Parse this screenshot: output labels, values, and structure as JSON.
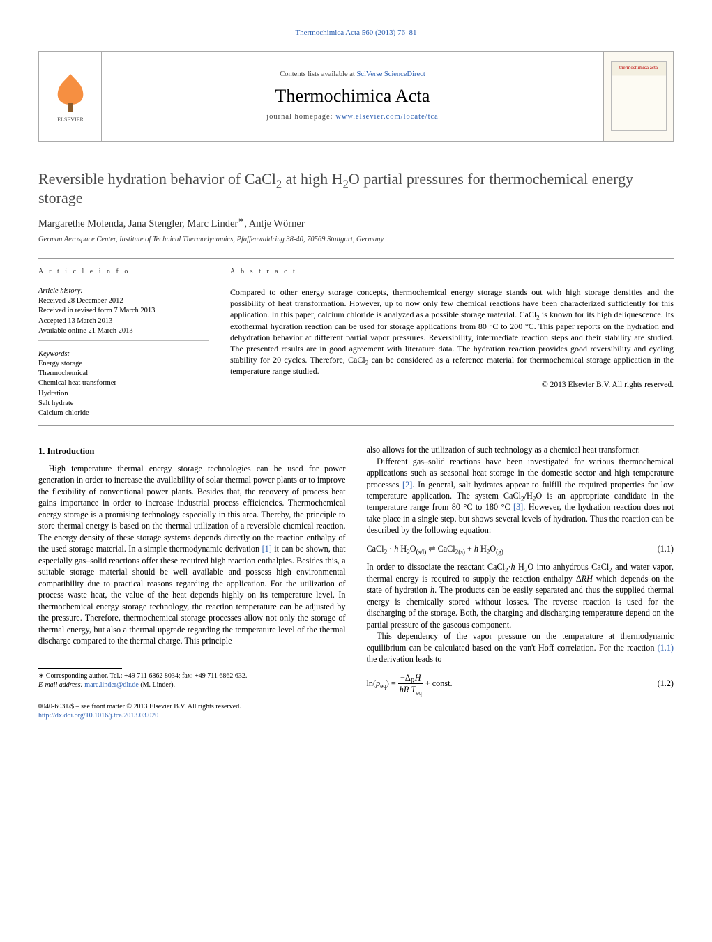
{
  "running_head": "Thermochimica Acta 560 (2013) 76–81",
  "masthead": {
    "contents_prefix": "Contents lists available at ",
    "contents_link": "SciVerse ScienceDirect",
    "journal": "Thermochimica Acta",
    "homepage_prefix": "journal homepage: ",
    "homepage_link": "www.elsevier.com/locate/tca",
    "cover_label": "thermochimica acta"
  },
  "title_html": "Reversible hydration behavior of CaCl<sub>2</sub> at high H<sub>2</sub>O partial pressures for thermochemical energy storage",
  "authors_html": "Margarethe Molenda, Jana Stengler, Marc Linder<sup>∗</sup>, Antje Wörner",
  "affiliation": "German Aerospace Center, Institute of Technical Thermodynamics, Pfaffenwaldring 38-40, 70569 Stuttgart, Germany",
  "info_head": "A R T I C L E   I N F O",
  "abstract_head": "A B S T R A C T",
  "history_label": "Article history:",
  "history": [
    "Received 28 December 2012",
    "Received in revised form 7 March 2013",
    "Accepted 13 March 2013",
    "Available online 21 March 2013"
  ],
  "keywords_label": "Keywords:",
  "keywords": [
    "Energy storage",
    "Thermochemical",
    "Chemical heat transformer",
    "Hydration",
    "Salt hydrate",
    "Calcium chloride"
  ],
  "abstract_html": "Compared to other energy storage concepts, thermochemical energy storage stands out with high storage densities and the possibility of heat transformation. However, up to now only few chemical reactions have been characterized sufficiently for this application. In this paper, calcium chloride is analyzed as a possible storage material. CaCl<sub>2</sub> is known for its high deliquescence. Its exothermal hydration reaction can be used for storage applications from 80 °C to 200 °C. This paper reports on the hydration and dehydration behavior at different partial vapor pressures. Reversibility, intermediate reaction steps and their stability are studied. The presented results are in good agreement with literature data. The hydration reaction provides good reversibility and cycling stability for 20 cycles. Therefore, CaCl<sub>2</sub> can be considered as a reference material for thermochemical storage application in the temperature range studied.",
  "abstract_copyright": "© 2013 Elsevier B.V. All rights reserved.",
  "sec1_title": "1.  Introduction",
  "p1_html": "High temperature thermal energy storage technologies can be used for power generation in order to increase the availability of solar thermal power plants or to improve the flexibility of conventional power plants. Besides that, the recovery of process heat gains importance in order to increase industrial process efficiencies. Thermochemical energy storage is a promising technology especially in this area. Thereby, the principle to store thermal energy is based on the thermal utilization of a reversible chemical reaction. The energy density of these storage systems depends directly on the reaction enthalpy of the used storage material. In a simple thermodynamic derivation <a class=\"ref-link\" href=\"#\">[1]</a> it can be shown, that especially gas–solid reactions offer these required high reaction enthalpies. Besides this, a suitable storage material should be well available and possess high environmental compatibility due to practical reasons regarding the application. For the utilization of process waste heat, the value of the heat depends highly on its temperature level. In thermochemical energy storage technology, the reaction temperature can be adjusted by the pressure. Therefore, thermochemical storage processes allow not only the storage of thermal energy, but also a thermal upgrade regarding the temperature level of the thermal discharge compared to the thermal charge. This principle",
  "p1b_html": "also allows for the utilization of such technology as a chemical heat transformer.",
  "p2_html": "Different gas–solid reactions have been investigated for various thermochemical applications such as seasonal heat storage in the domestic sector and high temperature processes <a class=\"ref-link\" href=\"#\">[2]</a>. In general, salt hydrates appear to fulfill the required properties for low temperature application. The system CaCl<sub>2</sub>/H<sub>2</sub>O is an appropriate candidate in the temperature range from 80 °C to 180 °C <a class=\"ref-link\" href=\"#\">[3]</a>. However, the hydration reaction does not take place in a single step, but shows several levels of hydration. Thus the reaction can be described by the following equation:",
  "eq1_html": "CaCl<sub>2</sub> · <i>h</i> H<sub>2</sub>O<sub>(s/l)</sub> ⇌ CaCl<sub>2(s)</sub> + <i>h</i> H<sub>2</sub>O<sub>(g)</sub>",
  "eq1_num": "(1.1)",
  "p3_html": "In order to dissociate the reactant CaCl<sub>2</sub>·<i>h</i> H<sub>2</sub>O into anhydrous CaCl<sub>2</sub> and water vapor, thermal energy is required to supply the reaction enthalpy Δ<i>RH</i> which depends on the state of hydration <i>h</i>. The products can be easily separated and thus the supplied thermal energy is chemically stored without losses. The reverse reaction is used for the discharging of the storage. Both, the charging and discharging temperature depend on the partial pressure of the gaseous component.",
  "p4_html": "This dependency of the vapor pressure on the temperature at thermodynamic equilibrium can be calculated based on the van't Hoff correlation. For the reaction <a class=\"eqn-link\" href=\"#\">(1.1)</a> the derivation leads to",
  "eq2_html": "ln(<i>p</i><sub>eq</sub>) = <span style=\"display:inline-block;vertical-align:middle;text-align:center;\"><span style=\"display:block;border-bottom:1px solid #000;padding:0 2px;\">−Δ<sub>R</sub><i>H</i></span><span style=\"display:block;padding:0 2px;\"><i>hR T</i><sub>eq</sub></span></span> + const.",
  "eq2_num": "(1.2)",
  "footnote_marker": "∗",
  "footnote_line1": " Corresponding author. Tel.: +49 711 6862 8034; fax: +49 711 6862 632.",
  "footnote_line2_label": "E-mail address: ",
  "footnote_line2_link": "marc.linder@dlr.de",
  "footnote_line2_tail": " (M. Linder).",
  "bottom_line1": "0040-6031/$ – see front matter © 2013 Elsevier B.V. All rights reserved.",
  "bottom_doi": "http://dx.doi.org/10.1016/j.tca.2013.03.020"
}
